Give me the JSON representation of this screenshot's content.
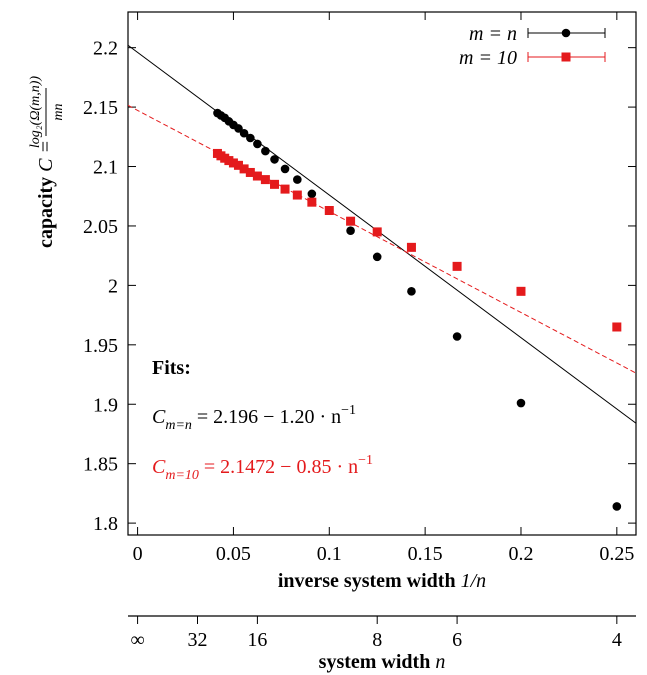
{
  "chart_data": {
    "type": "scatter",
    "series": [
      {
        "name": "m = n",
        "color": "#000000",
        "marker": "circle",
        "x": [
          0.25,
          0.2,
          0.16667,
          0.14286,
          0.125,
          0.11111,
          0.1,
          0.09091,
          0.08333,
          0.07692,
          0.07143,
          0.06667,
          0.0625,
          0.05882,
          0.05556,
          0.05263,
          0.05,
          0.04762,
          0.04545,
          0.04348,
          0.04167
        ],
        "values": [
          1.814,
          1.901,
          1.957,
          1.995,
          2.024,
          2.046,
          2.063,
          2.077,
          2.089,
          2.098,
          2.106,
          2.113,
          2.119,
          2.124,
          2.128,
          2.132,
          2.135,
          2.138,
          2.141,
          2.143,
          2.145
        ]
      },
      {
        "name": "m = 10",
        "color": "#e41a1c",
        "marker": "square",
        "x": [
          0.25,
          0.2,
          0.16667,
          0.14286,
          0.125,
          0.11111,
          0.1,
          0.09091,
          0.08333,
          0.07692,
          0.07143,
          0.06667,
          0.0625,
          0.05882,
          0.05556,
          0.05263,
          0.05,
          0.04762,
          0.04545,
          0.04348,
          0.04167
        ],
        "values": [
          1.965,
          1.995,
          2.016,
          2.032,
          2.045,
          2.054,
          2.063,
          2.07,
          2.076,
          2.081,
          2.085,
          2.089,
          2.092,
          2.095,
          2.098,
          2.101,
          2.103,
          2.105,
          2.107,
          2.109,
          2.111
        ]
      }
    ],
    "fits": [
      {
        "intercept": 2.196,
        "slope": -1.2,
        "color": "#000000",
        "dashed": false
      },
      {
        "intercept": 2.1472,
        "slope": -0.85,
        "color": "#e41a1c",
        "dashed": true
      }
    ],
    "xlim": [
      -0.005,
      0.26
    ],
    "ylim": [
      1.79,
      2.23
    ],
    "xticks": [
      0,
      0.05,
      0.1,
      0.15,
      0.2,
      0.25
    ],
    "yticks": [
      1.8,
      1.85,
      1.9,
      1.95,
      2,
      2.05,
      2.1,
      2.15,
      2.2
    ],
    "x2ticks": [
      {
        "value": 0,
        "label": "∞"
      },
      {
        "value": 0.03125,
        "label": "32"
      },
      {
        "value": 0.0625,
        "label": "16"
      },
      {
        "value": 0.125,
        "label": "8"
      },
      {
        "value": 0.16667,
        "label": "6"
      },
      {
        "value": 0.25,
        "label": "4"
      }
    ],
    "xlabel": {
      "text": "inverse system width",
      "math": "1/n"
    },
    "x2label": {
      "text": "system width",
      "math": "n"
    },
    "ylabel": {
      "text": "capacity",
      "math": "C =",
      "numerator": "log₂(Ω(m,n))",
      "denominator": "mn"
    },
    "legend": "upper right",
    "annotations": {
      "heading": "Fits:",
      "lines": [
        {
          "symbol": "C",
          "subscript": "m=n",
          "rest": " = 2.196 − 1.20 · n",
          "sup": "−1",
          "color": "#000000"
        },
        {
          "symbol": "C",
          "subscript": "m=10",
          "rest": " = 2.1472 − 0.85 · n",
          "sup": "−1",
          "color": "#e41a1c"
        }
      ]
    }
  }
}
